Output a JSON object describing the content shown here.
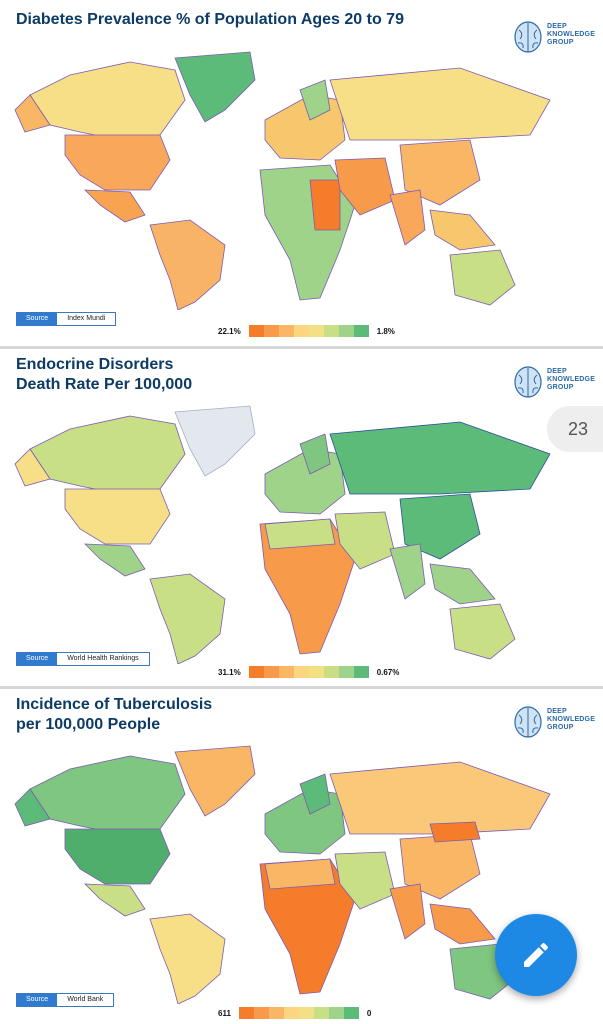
{
  "brand": {
    "line1": "DEEP",
    "line2": "KNOWLEDGE",
    "line3": "GROUP"
  },
  "panels": [
    {
      "title_lines": [
        "Diabetes Prevalence % of Population Ages 20 to 79"
      ],
      "source_label": "Source",
      "source_value": "Index Mundi",
      "legend_max": "22.1%",
      "legend_min": "1.8%"
    },
    {
      "title_lines": [
        "Endocrine Disorders",
        "Death Rate Per 100,000"
      ],
      "source_label": "Source",
      "source_value": "World Health Rankings",
      "legend_max": "31.1%",
      "legend_min": "0.67%"
    },
    {
      "title_lines": [
        "Incidence of Tuberculosis",
        "per 100,000 People"
      ],
      "source_label": "Source",
      "source_value": "World Bank",
      "legend_max": "611",
      "legend_min": "0"
    }
  ],
  "legend_colors": [
    "#f57c2b",
    "#f79a4a",
    "#f9b766",
    "#fbd57f",
    "#f2e184",
    "#c9df85",
    "#9fd38a",
    "#5dbb7a"
  ],
  "page_badge": "23",
  "fab_icon": "pencil-icon"
}
